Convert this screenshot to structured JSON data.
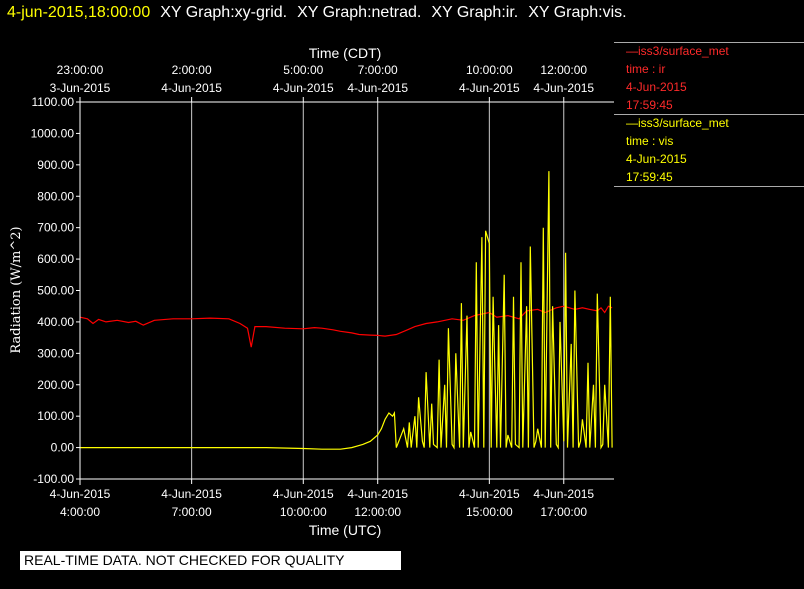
{
  "header": {
    "timestamp": "4-jun-2015,18:00:00",
    "graphs": [
      "XY Graph:xy-grid.",
      "XY Graph:netrad.",
      "XY Graph:ir.",
      "XY Graph:vis."
    ]
  },
  "legend": {
    "ir": {
      "station": "—iss3/surface_met",
      "var": "time : ir",
      "date": "4-Jun-2015",
      "time": "17:59:45",
      "color": "#ff0000"
    },
    "vis": {
      "station": "—iss3/surface_met",
      "var": "time : vis",
      "date": "4-Jun-2015",
      "time": "17:59:45",
      "color": "#ffff00"
    }
  },
  "quality_note": "REAL-TIME DATA. NOT CHECKED FOR QUALITY",
  "chart_data": {
    "type": "line",
    "xlabel_bottom": "Time (UTC)",
    "xlabel_top": "Time (CDT)",
    "ylabel": "Radiation (W/m^2)",
    "ylim": [
      -100,
      1100
    ],
    "xlim": [
      4.0,
      18.35
    ],
    "grid": "vertical lines at labeled times",
    "yticks": [
      "-100.00",
      "0.00",
      "100.00",
      "200.00",
      "300.00",
      "400.00",
      "500.00",
      "600.00",
      "700.00",
      "800.00",
      "900.00",
      "1000.00",
      "1100.00"
    ],
    "bottom_ticks": [
      {
        "x": 4.0,
        "line1": "4-Jun-2015",
        "line2": "4:00:00"
      },
      {
        "x": 7.0,
        "line1": "4-Jun-2015",
        "line2": "7:00:00"
      },
      {
        "x": 10.0,
        "line1": "4-Jun-2015",
        "line2": "10:00:00"
      },
      {
        "x": 12.0,
        "line1": "4-Jun-2015",
        "line2": "12:00:00"
      },
      {
        "x": 15.0,
        "line1": "4-Jun-2015",
        "line2": "15:00:00"
      },
      {
        "x": 17.0,
        "line1": "4-Jun-2015",
        "line2": "17:00:00"
      }
    ],
    "top_ticks": [
      {
        "x": 4.0,
        "line1": "23:00:00",
        "line2": "3-Jun-2015"
      },
      {
        "x": 7.0,
        "line1": "2:00:00",
        "line2": "4-Jun-2015"
      },
      {
        "x": 10.0,
        "line1": "5:00:00",
        "line2": "4-Jun-2015"
      },
      {
        "x": 12.0,
        "line1": "7:00:00",
        "line2": "4-Jun-2015"
      },
      {
        "x": 15.0,
        "line1": "10:00:00",
        "line2": "4-Jun-2015"
      },
      {
        "x": 17.0,
        "line1": "12:00:00",
        "line2": "4-Jun-2015"
      }
    ],
    "series": [
      {
        "name": "ir",
        "color": "#ff0000",
        "x": [
          4.0,
          4.2,
          4.35,
          4.5,
          4.7,
          5.0,
          5.3,
          5.5,
          5.7,
          6.0,
          6.5,
          7.0,
          7.5,
          8.0,
          8.3,
          8.5,
          8.6,
          8.7,
          9.0,
          9.5,
          10.0,
          10.3,
          10.5,
          10.8,
          11.0,
          11.3,
          11.5,
          11.8,
          12.0,
          12.2,
          12.5,
          12.8,
          13.0,
          13.3,
          13.6,
          14.0,
          14.3,
          14.6,
          15.0,
          15.2,
          15.5,
          15.8,
          16.0,
          16.3,
          16.5,
          16.8,
          17.0,
          17.3,
          17.5,
          17.7,
          17.9,
          18.0,
          18.1,
          18.2,
          18.3
        ],
        "y": [
          415,
          410,
          395,
          408,
          400,
          405,
          398,
          402,
          390,
          405,
          410,
          410,
          412,
          410,
          395,
          380,
          320,
          385,
          385,
          380,
          378,
          382,
          380,
          375,
          370,
          365,
          360,
          358,
          357,
          355,
          360,
          375,
          385,
          395,
          400,
          410,
          405,
          420,
          430,
          415,
          420,
          410,
          435,
          440,
          430,
          445,
          450,
          440,
          445,
          440,
          435,
          445,
          430,
          450,
          445
        ]
      },
      {
        "name": "vis",
        "color": "#ffff00",
        "x": [
          4.0,
          5.0,
          6.0,
          7.0,
          8.0,
          9.0,
          10.0,
          10.5,
          11.0,
          11.3,
          11.6,
          11.8,
          12.0,
          12.1,
          12.2,
          12.3,
          12.4,
          12.45,
          12.5,
          12.6,
          12.7,
          12.8,
          12.85,
          12.9,
          13.0,
          13.05,
          13.1,
          13.2,
          13.25,
          13.3,
          13.4,
          13.45,
          13.5,
          13.6,
          13.65,
          13.7,
          13.8,
          13.85,
          13.9,
          14.0,
          14.05,
          14.1,
          14.2,
          14.25,
          14.3,
          14.4,
          14.45,
          14.5,
          14.6,
          14.65,
          14.7,
          14.8,
          14.85,
          14.9,
          15.0,
          15.05,
          15.1,
          15.2,
          15.25,
          15.3,
          15.4,
          15.45,
          15.5,
          15.6,
          15.65,
          15.7,
          15.8,
          15.85,
          15.9,
          16.0,
          16.05,
          16.1,
          16.2,
          16.25,
          16.3,
          16.4,
          16.45,
          16.5,
          16.6,
          16.65,
          16.7,
          16.8,
          16.85,
          16.9,
          17.0,
          17.05,
          17.1,
          17.2,
          17.25,
          17.3,
          17.4,
          17.45,
          17.5,
          17.6,
          17.65,
          17.7,
          17.8,
          17.85,
          17.9,
          18.0,
          18.05,
          18.1,
          18.2,
          18.25,
          18.3
        ],
        "y": [
          0,
          0,
          0,
          0,
          0,
          0,
          -3,
          -5,
          -5,
          0,
          10,
          20,
          40,
          60,
          90,
          110,
          100,
          110,
          0,
          30,
          60,
          0,
          80,
          0,
          100,
          0,
          160,
          20,
          0,
          240,
          0,
          140,
          10,
          0,
          280,
          0,
          200,
          0,
          380,
          10,
          0,
          300,
          0,
          460,
          0,
          420,
          0,
          50,
          0,
          590,
          0,
          670,
          0,
          690,
          650,
          0,
          480,
          0,
          390,
          0,
          550,
          0,
          40,
          0,
          480,
          10,
          0,
          590,
          0,
          450,
          0,
          640,
          0,
          20,
          60,
          0,
          700,
          0,
          880,
          0,
          450,
          10,
          0,
          400,
          20,
          620,
          0,
          330,
          0,
          500,
          0,
          20,
          90,
          0,
          270,
          0,
          200,
          0,
          490,
          0,
          10,
          200,
          0,
          480,
          0
        ]
      }
    ]
  }
}
